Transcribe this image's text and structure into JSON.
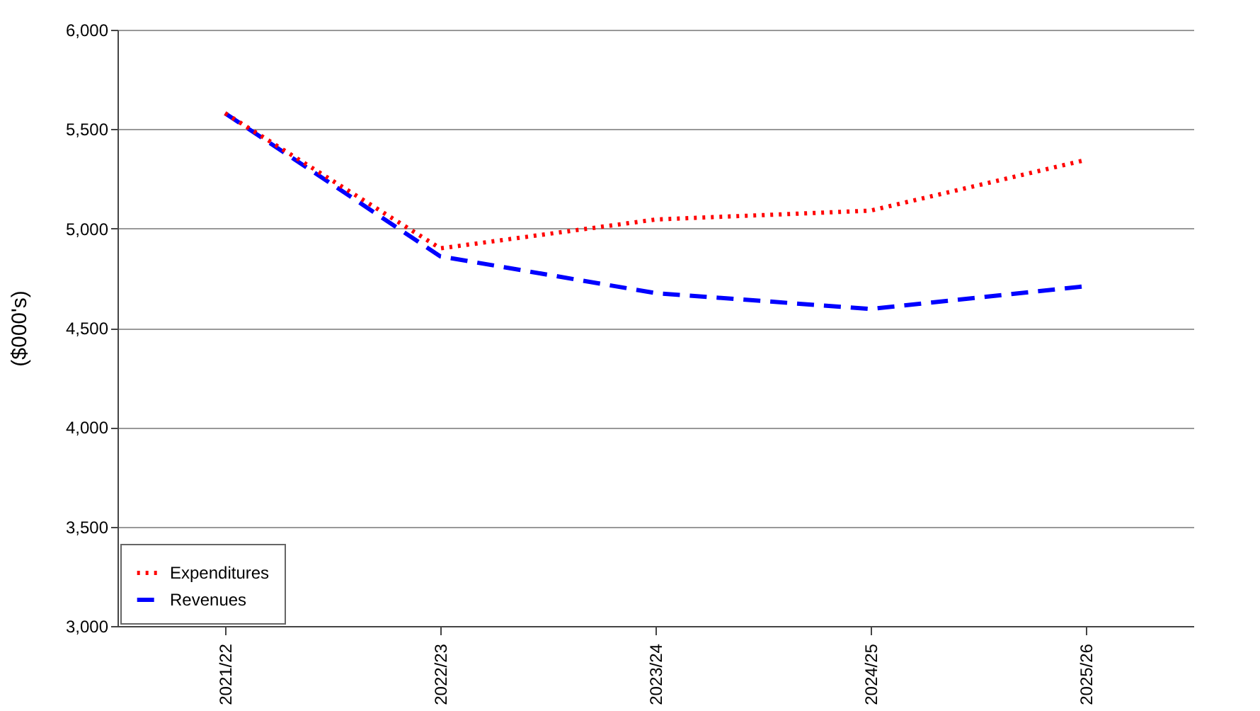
{
  "chart_data": {
    "type": "line",
    "ylabel": "($000's)",
    "categories": [
      "2021/22",
      "2022/23",
      "2023/24",
      "2024/25",
      "2025/26"
    ],
    "series": [
      {
        "name": "Expenditures",
        "color": "#ff0000",
        "line_style": "dotted",
        "values": [
          5580,
          4900,
          5045,
          5090,
          5345
        ]
      },
      {
        "name": "Revenues",
        "color": "#0000ff",
        "line_style": "dashed",
        "values": [
          5580,
          4860,
          4675,
          4595,
          4710
        ]
      }
    ],
    "ylim": [
      3000,
      6000
    ],
    "yticks": [
      {
        "value": 3000,
        "label": "3,000"
      },
      {
        "value": 3500,
        "label": "3,500"
      },
      {
        "value": 4000,
        "label": "4,000"
      },
      {
        "value": 4500,
        "label": "4,500"
      },
      {
        "value": 5000,
        "label": "5,000"
      },
      {
        "value": 5500,
        "label": "5,500"
      },
      {
        "value": 6000,
        "label": "6,000"
      }
    ],
    "grid": "y",
    "legend": "bottom left",
    "marker": "none"
  }
}
